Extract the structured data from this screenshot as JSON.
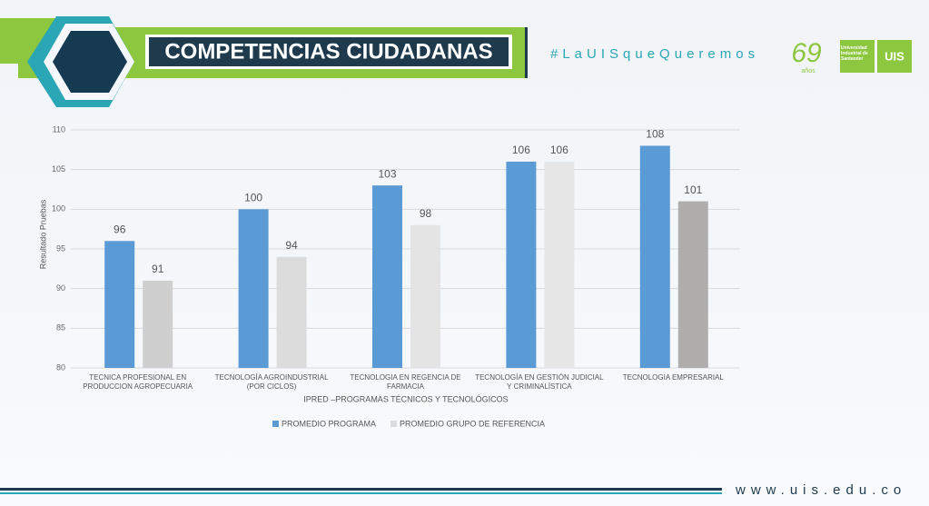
{
  "header": {
    "title": "COMPETENCIAS CIUDADANAS",
    "hashtag": "#LaUISqueQueremos",
    "anniversary": "69",
    "anniversary_sub": "años",
    "university": "Universidad Industrial de Santander",
    "logo": "UIS"
  },
  "chart_data": {
    "type": "bar",
    "categories": [
      "TECNICA PROFESIONAL EN PRODUCCION AGROPECUARIA",
      "TECNOLOGÍA AGROINDUSTRIAL (POR CICLOS)",
      "TECNOLOGIA EN REGENCIA DE FARMACIA",
      "TECNOLOGÍA EN GESTIÓN JUDICIAL Y CRIMINALÍSTICA",
      "TECNOLOGIA EMPRESARIAL"
    ],
    "series": [
      {
        "name": "PROMEDIO PROGRAMA",
        "color": "#5b9bd5",
        "values": [
          96,
          100,
          103,
          106,
          108
        ]
      },
      {
        "name": "PROMEDIO GRUPO DE REFERENCIA",
        "color": "#dcdcdc",
        "colors": [
          "#d0cfd0",
          "#dcdcdc",
          "#e4e4e4",
          "#e6e6e6",
          "#b0adad"
        ],
        "values": [
          91,
          94,
          98,
          106,
          101
        ]
      }
    ],
    "x_label": "IPRED –PROGRAMAS TÉCNICOS Y TECNOLÓGICOS",
    "y_label": "Resultado Pruebas",
    "ylim": [
      80,
      110
    ],
    "yticks": [
      80,
      85,
      90,
      95,
      100,
      105,
      110
    ],
    "grid": true,
    "legend": "bottom"
  },
  "footer": {
    "url": "www.uis.edu.co"
  }
}
